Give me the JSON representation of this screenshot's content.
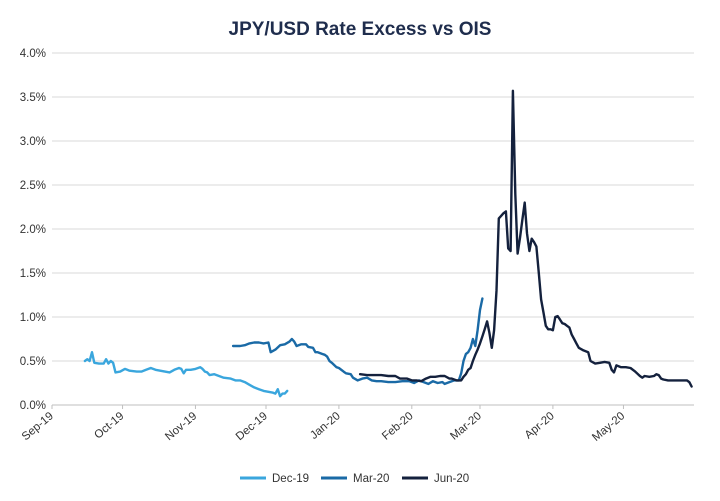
{
  "chart_data": {
    "type": "line",
    "title": "JPY/USD Rate Excess vs OIS",
    "xlabel": "",
    "ylabel": "",
    "ylim": [
      0,
      4
    ],
    "yticks": [
      "0.0%",
      "0.5%",
      "1.0%",
      "1.5%",
      "2.0%",
      "2.5%",
      "3.0%",
      "3.5%",
      "4.0%"
    ],
    "ytick_values": [
      0,
      0.5,
      1.0,
      1.5,
      2.0,
      2.5,
      3.0,
      3.5,
      4.0
    ],
    "xlim": [
      0,
      273
    ],
    "xtick_labels": [
      "Sep-19",
      "Oct-19",
      "Nov-19",
      "Dec-19",
      "Jan-20",
      "Feb-20",
      "Mar-20",
      "Apr-20",
      "May-20"
    ],
    "xtick_values": [
      0,
      30,
      61,
      91,
      122,
      153,
      182,
      213,
      243
    ],
    "x_unit": "days since Sep-01-2019",
    "grid": "horizontal",
    "legend_position": "bottom",
    "series": [
      {
        "name": "Dec-19",
        "color": "#3aa6dd",
        "points": [
          [
            14,
            0.5
          ],
          [
            15,
            0.52
          ],
          [
            16,
            0.5
          ],
          [
            17,
            0.6
          ],
          [
            18,
            0.48
          ],
          [
            20,
            0.47
          ],
          [
            22,
            0.47
          ],
          [
            23,
            0.52
          ],
          [
            24,
            0.47
          ],
          [
            25,
            0.5
          ],
          [
            26,
            0.48
          ],
          [
            27,
            0.37
          ],
          [
            29,
            0.38
          ],
          [
            31,
            0.41
          ],
          [
            33,
            0.39
          ],
          [
            36,
            0.38
          ],
          [
            38,
            0.38
          ],
          [
            40,
            0.4
          ],
          [
            42,
            0.42
          ],
          [
            44,
            0.4
          ],
          [
            46,
            0.39
          ],
          [
            48,
            0.38
          ],
          [
            50,
            0.37
          ],
          [
            52,
            0.4
          ],
          [
            54,
            0.42
          ],
          [
            55,
            0.41
          ],
          [
            56,
            0.36
          ],
          [
            57,
            0.4
          ],
          [
            59,
            0.4
          ],
          [
            61,
            0.41
          ],
          [
            63,
            0.43
          ],
          [
            64,
            0.41
          ],
          [
            65,
            0.38
          ],
          [
            66,
            0.37
          ],
          [
            67,
            0.34
          ],
          [
            69,
            0.35
          ],
          [
            71,
            0.33
          ],
          [
            73,
            0.31
          ],
          [
            76,
            0.3
          ],
          [
            78,
            0.28
          ],
          [
            80,
            0.28
          ],
          [
            82,
            0.26
          ],
          [
            84,
            0.23
          ],
          [
            86,
            0.2
          ],
          [
            88,
            0.18
          ],
          [
            90,
            0.16
          ],
          [
            92,
            0.15
          ],
          [
            94,
            0.14
          ],
          [
            95,
            0.13
          ],
          [
            96,
            0.18
          ],
          [
            97,
            0.1
          ],
          [
            98,
            0.13
          ],
          [
            99,
            0.13
          ],
          [
            100,
            0.16
          ]
        ]
      },
      {
        "name": "Mar-20",
        "color": "#1a6aa6",
        "points": [
          [
            77,
            0.67
          ],
          [
            79,
            0.67
          ],
          [
            80,
            0.67
          ],
          [
            82,
            0.68
          ],
          [
            84,
            0.7
          ],
          [
            86,
            0.71
          ],
          [
            88,
            0.71
          ],
          [
            90,
            0.7
          ],
          [
            92,
            0.71
          ],
          [
            93,
            0.6
          ],
          [
            95,
            0.63
          ],
          [
            97,
            0.68
          ],
          [
            99,
            0.69
          ],
          [
            101,
            0.72
          ],
          [
            102,
            0.75
          ],
          [
            103,
            0.72
          ],
          [
            104,
            0.67
          ],
          [
            106,
            0.69
          ],
          [
            107,
            0.69
          ],
          [
            108,
            0.69
          ],
          [
            109,
            0.66
          ],
          [
            111,
            0.65
          ],
          [
            112,
            0.6
          ],
          [
            113,
            0.6
          ],
          [
            115,
            0.58
          ],
          [
            116,
            0.57
          ],
          [
            117,
            0.55
          ],
          [
            118,
            0.5
          ],
          [
            119,
            0.48
          ],
          [
            121,
            0.43
          ],
          [
            122,
            0.42
          ],
          [
            124,
            0.38
          ],
          [
            125,
            0.36
          ],
          [
            127,
            0.35
          ],
          [
            128,
            0.31
          ],
          [
            130,
            0.28
          ],
          [
            132,
            0.3
          ],
          [
            134,
            0.31
          ],
          [
            136,
            0.28
          ],
          [
            138,
            0.27
          ],
          [
            140,
            0.27
          ],
          [
            143,
            0.26
          ],
          [
            146,
            0.26
          ],
          [
            149,
            0.27
          ],
          [
            152,
            0.27
          ],
          [
            154,
            0.25
          ],
          [
            156,
            0.28
          ],
          [
            158,
            0.26
          ],
          [
            160,
            0.24
          ],
          [
            162,
            0.27
          ],
          [
            164,
            0.25
          ],
          [
            166,
            0.26
          ],
          [
            167,
            0.24
          ],
          [
            169,
            0.26
          ],
          [
            171,
            0.28
          ],
          [
            173,
            0.28
          ],
          [
            174,
            0.36
          ],
          [
            175,
            0.5
          ],
          [
            176,
            0.58
          ],
          [
            177,
            0.6
          ],
          [
            178,
            0.65
          ],
          [
            179,
            0.75
          ],
          [
            180,
            0.67
          ],
          [
            181,
            0.85
          ],
          [
            182,
            1.08
          ],
          [
            183,
            1.21
          ]
        ]
      },
      {
        "name": "Jun-20",
        "color": "#14213d",
        "points": [
          [
            131,
            0.35
          ],
          [
            134,
            0.34
          ],
          [
            137,
            0.34
          ],
          [
            140,
            0.34
          ],
          [
            143,
            0.33
          ],
          [
            146,
            0.33
          ],
          [
            148,
            0.3
          ],
          [
            150,
            0.3
          ],
          [
            151,
            0.3
          ],
          [
            153,
            0.28
          ],
          [
            155,
            0.28
          ],
          [
            157,
            0.27
          ],
          [
            159,
            0.3
          ],
          [
            161,
            0.32
          ],
          [
            163,
            0.32
          ],
          [
            165,
            0.33
          ],
          [
            167,
            0.33
          ],
          [
            169,
            0.3
          ],
          [
            170,
            0.3
          ],
          [
            172,
            0.28
          ],
          [
            173,
            0.28
          ],
          [
            174,
            0.28
          ],
          [
            175,
            0.32
          ],
          [
            176,
            0.35
          ],
          [
            177,
            0.4
          ],
          [
            178,
            0.42
          ],
          [
            179,
            0.5
          ],
          [
            180,
            0.57
          ],
          [
            181,
            0.63
          ],
          [
            182,
            0.7
          ],
          [
            183,
            0.78
          ],
          [
            184,
            0.86
          ],
          [
            185,
            0.95
          ],
          [
            186,
            0.82
          ],
          [
            187,
            0.65
          ],
          [
            188,
            0.85
          ],
          [
            189,
            1.3
          ],
          [
            190,
            2.12
          ],
          [
            191,
            2.15
          ],
          [
            192,
            2.18
          ],
          [
            193,
            2.2
          ],
          [
            194,
            1.78
          ],
          [
            195,
            1.75
          ],
          [
            196,
            3.57
          ],
          [
            197,
            2.4
          ],
          [
            198,
            1.72
          ],
          [
            199,
            1.9
          ],
          [
            200,
            2.1
          ],
          [
            201,
            2.3
          ],
          [
            202,
            1.95
          ],
          [
            203,
            1.75
          ],
          [
            204,
            1.89
          ],
          [
            205,
            1.85
          ],
          [
            206,
            1.8
          ],
          [
            207,
            1.5
          ],
          [
            208,
            1.2
          ],
          [
            209,
            1.05
          ],
          [
            210,
            0.9
          ],
          [
            211,
            0.86
          ],
          [
            212,
            0.86
          ],
          [
            213,
            0.85
          ],
          [
            214,
            1.0
          ],
          [
            215,
            1.01
          ],
          [
            216,
            0.97
          ],
          [
            217,
            0.93
          ],
          [
            218,
            0.92
          ],
          [
            219,
            0.9
          ],
          [
            220,
            0.88
          ],
          [
            221,
            0.8
          ],
          [
            222,
            0.75
          ],
          [
            223,
            0.7
          ],
          [
            224,
            0.65
          ],
          [
            226,
            0.62
          ],
          [
            228,
            0.6
          ],
          [
            229,
            0.5
          ],
          [
            231,
            0.47
          ],
          [
            233,
            0.48
          ],
          [
            235,
            0.49
          ],
          [
            237,
            0.48
          ],
          [
            238,
            0.4
          ],
          [
            239,
            0.37
          ],
          [
            240,
            0.45
          ],
          [
            242,
            0.43
          ],
          [
            244,
            0.43
          ],
          [
            246,
            0.42
          ],
          [
            248,
            0.38
          ],
          [
            250,
            0.33
          ],
          [
            251,
            0.31
          ],
          [
            252,
            0.33
          ],
          [
            254,
            0.32
          ],
          [
            256,
            0.33
          ],
          [
            257,
            0.35
          ],
          [
            258,
            0.34
          ],
          [
            259,
            0.3
          ],
          [
            260,
            0.29
          ],
          [
            262,
            0.28
          ],
          [
            264,
            0.28
          ],
          [
            266,
            0.28
          ],
          [
            268,
            0.28
          ],
          [
            270,
            0.28
          ],
          [
            271,
            0.26
          ],
          [
            272,
            0.21
          ]
        ]
      }
    ]
  }
}
